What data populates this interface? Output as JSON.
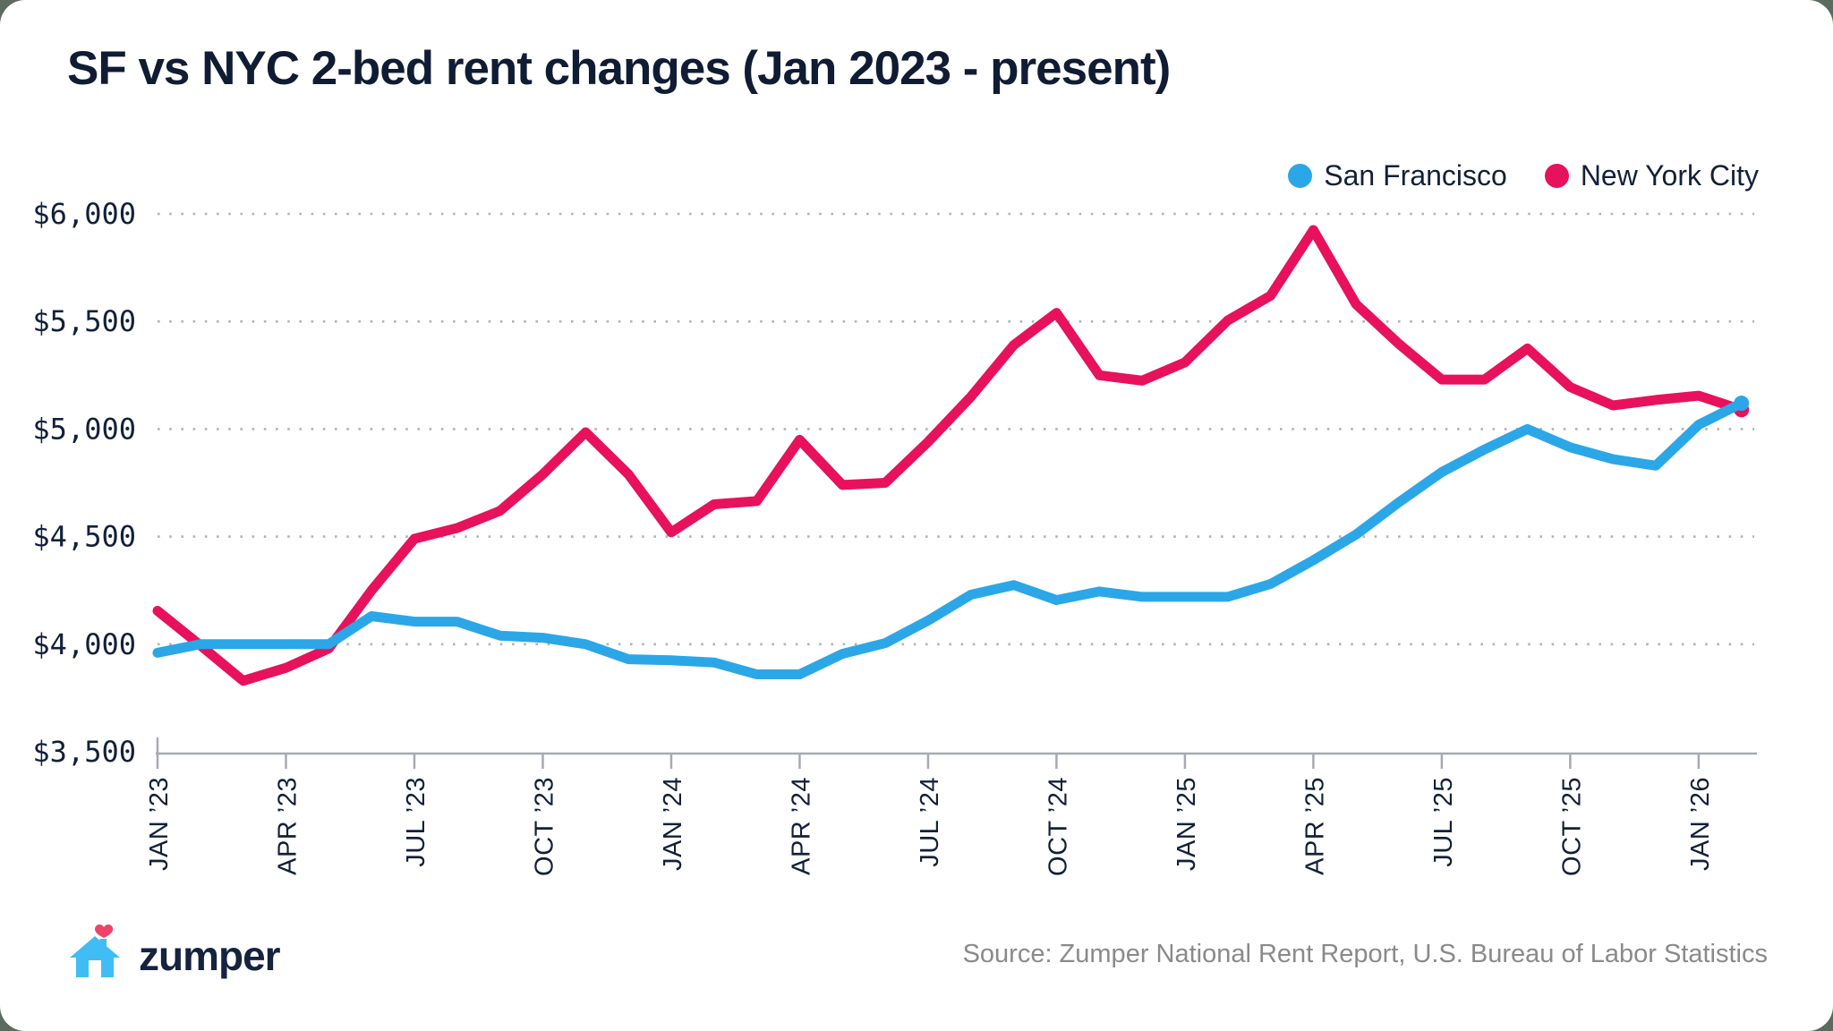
{
  "title": "SF vs NYC 2-bed rent changes (Jan 2023 - present)",
  "legend": {
    "items": [
      {
        "label": "San Francisco",
        "color": "#2BA7E8"
      },
      {
        "label": "New York City",
        "color": "#E8115C"
      }
    ]
  },
  "footer": {
    "brand": "zumper",
    "source": "Source: Zumper National Rent Report, U.S. Bureau of Labor Statistics"
  },
  "colors": {
    "title_text": "#101C33",
    "axis_text": "#13203A",
    "axis_line": "#A6AAB0",
    "gridline_dots": "#6F7680",
    "source_text": "#8A8A8A",
    "logo_house": "#41BDF5",
    "logo_heart": "#EC4569"
  },
  "chart_data": {
    "type": "line",
    "title": "SF vs NYC 2-bed rent changes (Jan 2023 - present)",
    "xlabel": "",
    "ylabel": "",
    "ylim": [
      3500,
      6000
    ],
    "y_ticks": [
      3500,
      4000,
      4500,
      5000,
      5500,
      6000
    ],
    "y_tick_format": "$#,##0",
    "x_tick_every": 3,
    "grid": "dotted-horizontal",
    "legend_position": "top-right",
    "x": [
      "JAN ’23",
      "FEB ’23",
      "MAR ’23",
      "APR ’23",
      "MAY ’23",
      "JUN ’23",
      "JUL ’23",
      "AUG ’23",
      "SEP ’23",
      "OCT ’23",
      "NOV ’23",
      "DEC ’23",
      "JAN ’24",
      "FEB ’24",
      "MAR ’24",
      "APR ’24",
      "MAY ’24",
      "JUN ’24",
      "JUL ’24",
      "AUG ’24",
      "SEP ’24",
      "OCT ’24",
      "NOV ’24",
      "DEC ’24",
      "JAN ’25",
      "FEB ’25",
      "MAR ’25",
      "APR ’25",
      "MAY ’25",
      "JUN ’25",
      "JUL ’25",
      "AUG ’25",
      "SEP ’25",
      "OCT ’25",
      "NOV ’25",
      "DEC ’25",
      "JAN ’26",
      "FEB ’26"
    ],
    "series": [
      {
        "name": "San Francisco",
        "color": "#2BA7E8",
        "values": [
          3960,
          4000,
          4000,
          4000,
          4000,
          4130,
          4105,
          4105,
          4040,
          4030,
          4000,
          3930,
          3925,
          3915,
          3860,
          3860,
          3955,
          4005,
          4110,
          4230,
          4275,
          4205,
          4245,
          4220,
          4220,
          4220,
          4280,
          4390,
          4510,
          4660,
          4800,
          4905,
          5000,
          4915,
          4860,
          4830,
          5020,
          5120
        ]
      },
      {
        "name": "New York City",
        "color": "#E8115C",
        "values": [
          4155,
          3995,
          3830,
          3890,
          3980,
          4250,
          4490,
          4540,
          4620,
          4790,
          4985,
          4790,
          4520,
          4650,
          4665,
          4950,
          4740,
          4750,
          4940,
          5150,
          5390,
          5540,
          5250,
          5225,
          5310,
          5505,
          5620,
          5925,
          5580,
          5395,
          5230,
          5230,
          5375,
          5195,
          5110,
          5135,
          5155,
          5090
        ]
      }
    ]
  }
}
